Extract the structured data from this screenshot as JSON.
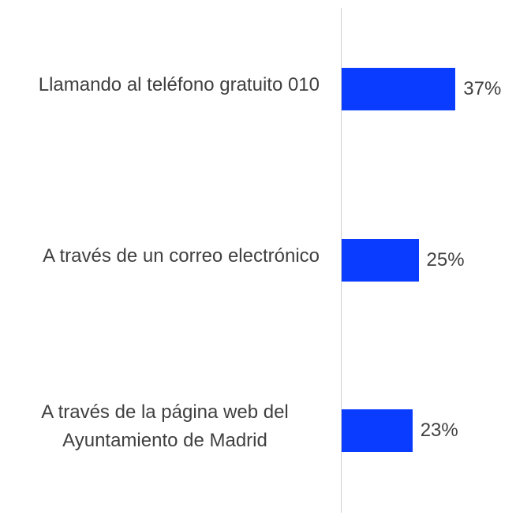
{
  "chart_data": {
    "type": "bar",
    "orientation": "horizontal",
    "categories": [
      "Llamando al teléfono gratuito 010",
      "A través de un correo electrónico",
      "A través de la página web del Ayuntamiento de Madrid"
    ],
    "values": [
      37,
      25,
      23
    ],
    "value_labels": [
      "37%",
      "25%",
      "23%"
    ],
    "color": "#0a3cff"
  }
}
